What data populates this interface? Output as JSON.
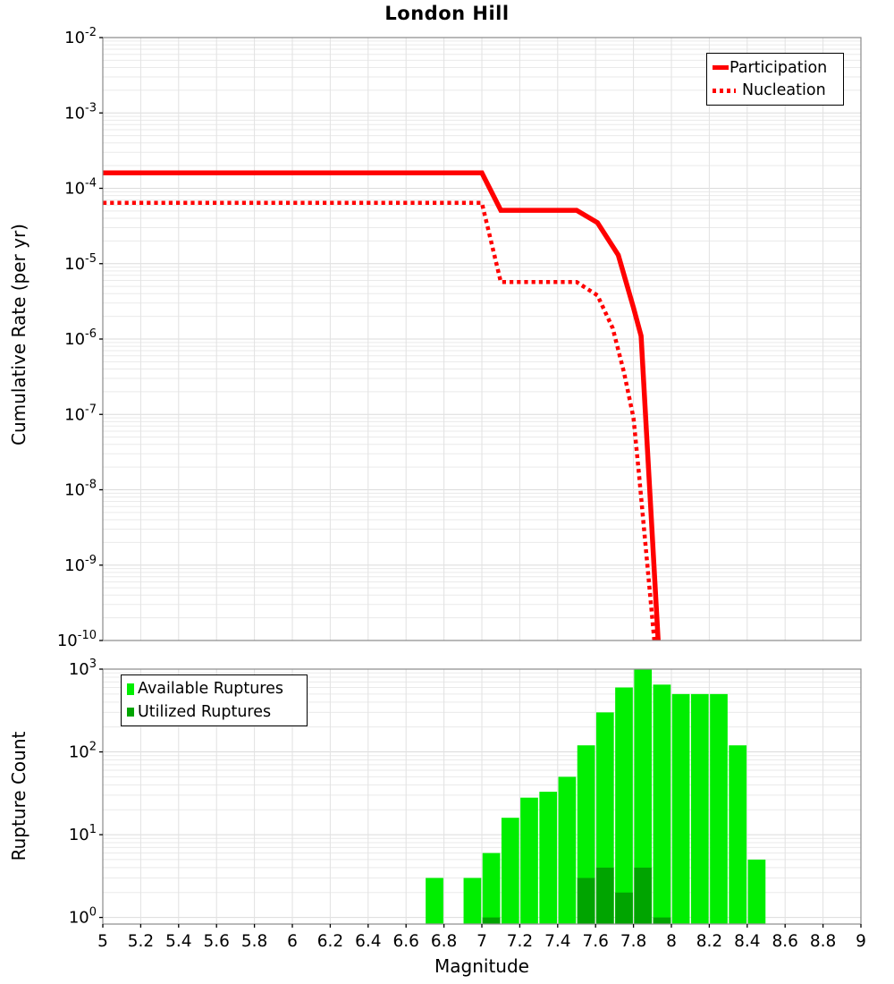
{
  "title": "London Hill",
  "x_axis": {
    "label": "Magnitude",
    "tick_labels": [
      "5",
      "5.2",
      "5.4",
      "5.6",
      "5.8",
      "6",
      "6.2",
      "6.4",
      "6.6",
      "6.8",
      "7",
      "7.2",
      "7.4",
      "7.6",
      "7.8",
      "8",
      "8.2",
      "8.4",
      "8.6",
      "8.8",
      "9"
    ],
    "range": [
      5,
      9
    ]
  },
  "colors": {
    "curve_red": "#FF0000",
    "available_green": "#00EE00",
    "utilized_green": "#00A400",
    "grid_minor": "#EAEAEA",
    "grid_major": "#DBDBDB",
    "grid_vertical": "#E2E2E2",
    "plot_border": "#8A8A8A",
    "tick": "#000000"
  },
  "chart_data": [
    {
      "type": "line",
      "title": "London Hill",
      "xlabel": "Magnitude",
      "ylabel": "Cumulative Rate (per yr)",
      "xlim": [
        5,
        9
      ],
      "ylim": [
        1e-10,
        0.01
      ],
      "y_scale": "log",
      "y_tick_exponents": [
        -2,
        -3,
        -4,
        -5,
        -6,
        -7,
        -8,
        -9,
        -10
      ],
      "grid": true,
      "legend_position": "top-right",
      "series": [
        {
          "name": "Participation",
          "style": "solid",
          "color": "#FF0000",
          "points": [
            [
              5.0,
              0.00016
            ],
            [
              7.0,
              0.00016
            ],
            [
              7.1,
              5.1e-05
            ],
            [
              7.5,
              5.1e-05
            ],
            [
              7.61,
              3.5e-05
            ],
            [
              7.72,
              1.3e-05
            ],
            [
              7.8,
              2.6e-06
            ],
            [
              7.84,
              1.1e-06
            ],
            [
              7.93,
              1e-10
            ]
          ]
        },
        {
          "name": "Nucleation",
          "style": "dotted",
          "color": "#FF0000",
          "points": [
            [
              5.0,
              6.4e-05
            ],
            [
              7.0,
              6.4e-05
            ],
            [
              7.1,
              5.7e-06
            ],
            [
              7.5,
              5.7e-06
            ],
            [
              7.61,
              3.8e-06
            ],
            [
              7.69,
              1.4e-06
            ],
            [
              7.75,
              3.6e-07
            ],
            [
              7.8,
              9e-08
            ],
            [
              7.83,
              1.5e-08
            ],
            [
              7.91,
              1e-10
            ]
          ]
        }
      ]
    },
    {
      "type": "bar",
      "xlabel": "Magnitude",
      "ylabel": "Rupture Count",
      "xlim": [
        5,
        9
      ],
      "ylim_log10": [
        -0.08,
        3.0
      ],
      "y_tick_exponents": [
        0,
        1,
        2,
        3
      ],
      "bin_width": 0.1,
      "grid": true,
      "legend_position": "top-left",
      "categories": [
        6.75,
        6.95,
        7.05,
        7.15,
        7.25,
        7.35,
        7.45,
        7.55,
        7.65,
        7.75,
        7.85,
        7.95,
        8.05,
        8.15,
        8.25,
        8.35,
        8.45
      ],
      "series": [
        {
          "name": "Available Ruptures",
          "color": "#00EE00",
          "values": [
            3,
            3,
            6,
            16,
            28,
            33,
            50,
            120,
            300,
            600,
            1000,
            650,
            500,
            500,
            500,
            120,
            5
          ]
        },
        {
          "name": "Utilized Ruptures",
          "color": "#00A400",
          "values": [
            null,
            null,
            1,
            null,
            null,
            null,
            null,
            3,
            4,
            2,
            4,
            1,
            null,
            null,
            null,
            null,
            null
          ]
        }
      ]
    }
  ]
}
